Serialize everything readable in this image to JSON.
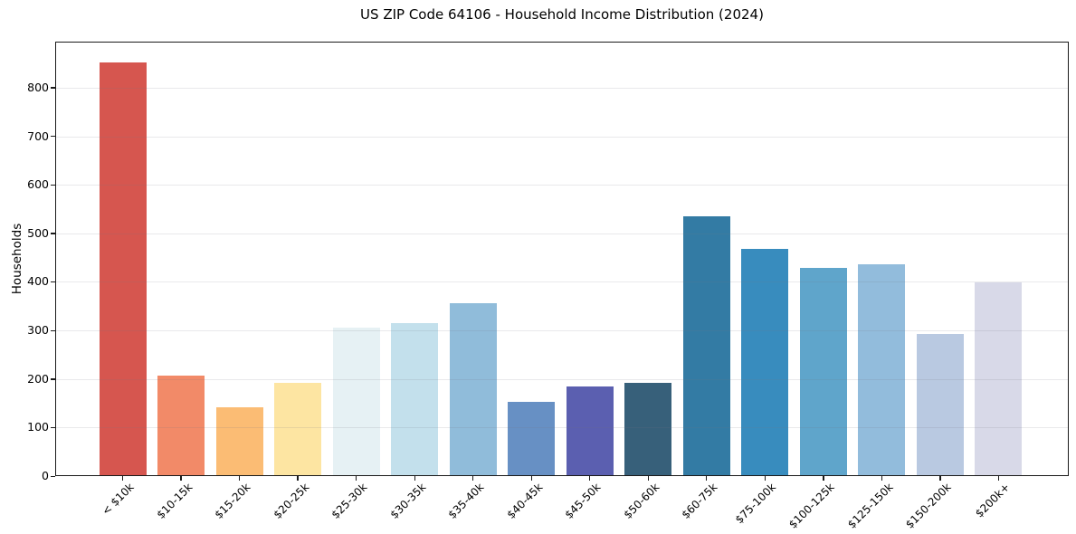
{
  "figure": {
    "background_color": "#ffffff",
    "spine_color": "#1a1a1a",
    "grid_color": "#ebebeb",
    "text_color": "#000000"
  },
  "chart_data": {
    "type": "bar",
    "title": "US ZIP Code 64106 - Household Income Distribution (2024)",
    "xlabel": "",
    "ylabel": "Households",
    "ylim": [
      0,
      895
    ],
    "yticks": [
      0,
      100,
      200,
      300,
      400,
      500,
      600,
      700,
      800
    ],
    "grid": true,
    "legend": false,
    "categories": [
      "< $10k",
      "$10-15k",
      "$15-20k",
      "$20-25k",
      "$25-30k",
      "$30-35k",
      "$35-40k",
      "$40-45k",
      "$45-50k",
      "$50-60k",
      "$60-75k",
      "$75-100k",
      "$100-125k",
      "$125-150k",
      "$150-200k",
      "$200k+"
    ],
    "values": [
      852,
      207,
      142,
      193,
      306,
      316,
      357,
      152,
      184,
      193,
      535,
      468,
      429,
      437,
      293,
      399
    ],
    "bar_colors": [
      "#d6564f",
      "#f28a68",
      "#fbbc74",
      "#fde5a2",
      "#e6f1f4",
      "#c3e0ec",
      "#90bcda",
      "#6790c4",
      "#5b5fb0",
      "#37607a",
      "#337ba4",
      "#388cbe",
      "#5fa5cb",
      "#92bcdc",
      "#b9c9e1",
      "#d8d9e8"
    ]
  }
}
